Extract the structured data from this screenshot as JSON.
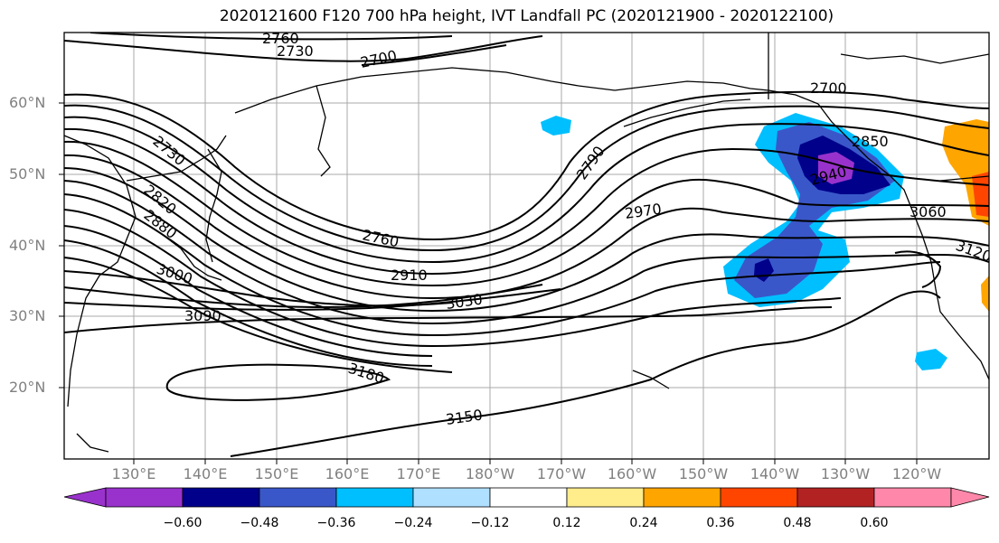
{
  "title": "2020121600 F120 700 hPa height, IVT Landfall PC (2020121900 - 2020122100)",
  "lat_labels": [
    "60°N",
    "50°N",
    "40°N",
    "30°N",
    "20°N"
  ],
  "lon_labels": [
    "130°E",
    "140°E",
    "150°E",
    "160°E",
    "170°E",
    "180°W",
    "170°W",
    "160°W",
    "150°W",
    "140°W",
    "130°W",
    "120°W"
  ],
  "contour_labels": {
    "c2760_top": "2760",
    "c2730_top": "2730",
    "c2700_top": "2700",
    "c2700_east": "2700",
    "c2730_west": "2730",
    "c2820": "2820",
    "c2880": "2880",
    "c2790": "2790",
    "c2850": "2850",
    "c2940": "2940",
    "c2970": "2970",
    "c3060": "3060",
    "c3120": "3120",
    "c2760_mid": "2760",
    "c2910": "2910",
    "c3000": "3000",
    "c3030": "3030",
    "c3090": "3090",
    "c3180": "3180",
    "c3150": "3150"
  },
  "colorbar": {
    "tick_labels": [
      "−0.60",
      "−0.48",
      "−0.36",
      "−0.24",
      "−0.12",
      "0.12",
      "0.24",
      "0.36",
      "0.48",
      "0.60"
    ],
    "colors": [
      "#9932cc",
      "#00008b",
      "#3a57c9",
      "#00bfff",
      "#b0e0ff",
      "#ffffff",
      "#ffec8b",
      "#ffa500",
      "#ff4500",
      "#b22222",
      "#ff88aa"
    ]
  },
  "map_colors": {
    "ocean": "#ffffff",
    "contour": "#000000",
    "grid": "#aaaaaa",
    "ivt_strong_neg": "#9932cc",
    "ivt_neg2": "#00008b",
    "ivt_neg3": "#3a57c9",
    "ivt_neg4": "#00bfff",
    "ivt_pos2": "#ffa500",
    "ivt_pos3": "#ff4500"
  }
}
